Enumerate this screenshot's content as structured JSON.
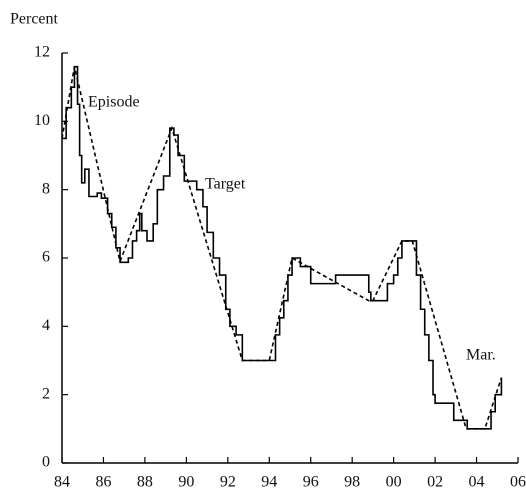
{
  "chart_data": {
    "type": "line",
    "y_label": "Percent",
    "xlim": [
      1984,
      2006
    ],
    "ylim": [
      0,
      12
    ],
    "xticks": [
      {
        "value": 1984,
        "label": "84"
      },
      {
        "value": 1986,
        "label": "86"
      },
      {
        "value": 1988,
        "label": "88"
      },
      {
        "value": 1990,
        "label": "90"
      },
      {
        "value": 1992,
        "label": "92"
      },
      {
        "value": 1994,
        "label": "94"
      },
      {
        "value": 1996,
        "label": "96"
      },
      {
        "value": 1998,
        "label": "98"
      },
      {
        "value": 2000,
        "label": "00"
      },
      {
        "value": 2002,
        "label": "02"
      },
      {
        "value": 2004,
        "label": "04"
      },
      {
        "value": 2006,
        "label": "06"
      }
    ],
    "yticks": [
      0,
      2,
      4,
      6,
      8,
      10,
      12
    ],
    "annotations": [
      "Episode",
      "Target",
      "Mar."
    ],
    "series": [
      {
        "name": "Target",
        "color": "#000000",
        "step": true,
        "dashed": false,
        "x": [
          1984.0,
          1984.2,
          1984.45,
          1984.6,
          1984.75,
          1984.85,
          1984.95,
          1985.1,
          1985.3,
          1985.7,
          1985.9,
          1986.2,
          1986.4,
          1986.6,
          1986.8,
          1987.2,
          1987.4,
          1987.6,
          1987.75,
          1987.85,
          1988.1,
          1988.4,
          1988.6,
          1988.9,
          1989.2,
          1989.4,
          1989.6,
          1989.9,
          1990.5,
          1990.8,
          1991.0,
          1991.3,
          1991.6,
          1991.9,
          1992.1,
          1992.4,
          1992.7,
          1994.0,
          1994.3,
          1994.5,
          1994.7,
          1994.9,
          1995.1,
          1995.5,
          1996.0,
          1997.2,
          1998.7,
          1998.8,
          1998.9,
          1999.5,
          1999.7,
          2000.0,
          2000.2,
          2000.4,
          2001.0,
          2001.1,
          2001.3,
          2001.5,
          2001.7,
          2001.9,
          2002.0,
          2002.85,
          2002.9,
          2003.5,
          2003.55,
          2004.5,
          2004.7,
          2004.9,
          2005.2
        ],
        "values": [
          9.5,
          10.4,
          11.0,
          11.6,
          10.5,
          9.0,
          8.2,
          8.6,
          7.8,
          7.9,
          7.75,
          7.3,
          6.9,
          6.3,
          5.875,
          6.0,
          6.5,
          6.8,
          7.3,
          6.8,
          6.5,
          7.0,
          8.0,
          8.4,
          9.8,
          9.6,
          9.0,
          8.25,
          8.0,
          7.5,
          6.75,
          6.0,
          5.5,
          4.5,
          4.0,
          3.75,
          3.0,
          3.0,
          3.75,
          4.25,
          4.75,
          5.5,
          6.0,
          5.75,
          5.25,
          5.5,
          5.5,
          5.0,
          4.75,
          4.75,
          5.25,
          5.5,
          6.0,
          6.5,
          6.5,
          5.5,
          4.5,
          3.75,
          3.0,
          2.0,
          1.75,
          1.75,
          1.25,
          1.25,
          1.0,
          1.0,
          1.5,
          2.0,
          2.5
        ]
      },
      {
        "name": "Episode",
        "color": "#000000",
        "step": false,
        "dashed": true,
        "x": [
          1984.0,
          1984.6,
          1986.8,
          1989.3,
          1992.7,
          1994.0,
          1995.1,
          1998.8,
          1999.0,
          2000.4,
          2000.9,
          2003.5,
          2004.4,
          2005.2
        ],
        "values": [
          9.5,
          11.6,
          5.9,
          9.8,
          3.0,
          3.0,
          6.0,
          4.75,
          4.75,
          6.5,
          6.5,
          1.0,
          1.0,
          2.5
        ]
      }
    ]
  }
}
